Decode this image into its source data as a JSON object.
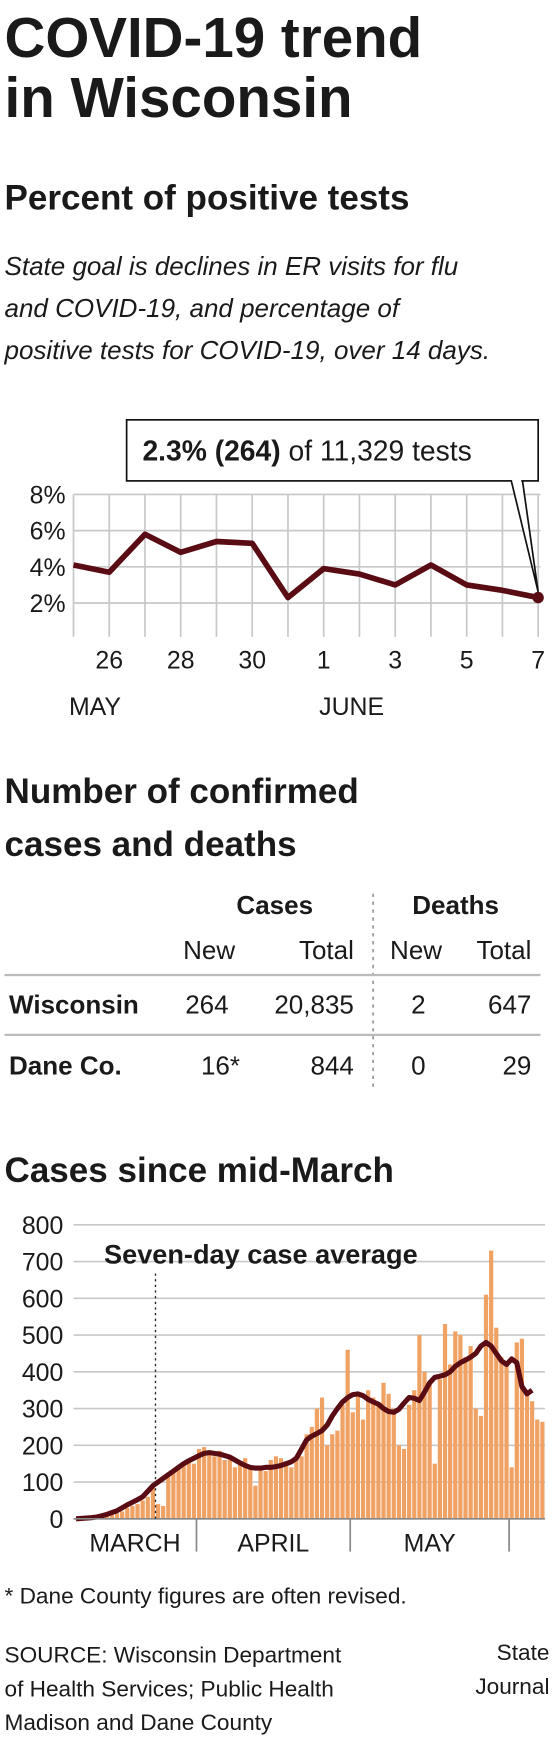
{
  "header": {
    "title_lines": [
      "COVID-19 trend",
      "in Wisconsin"
    ]
  },
  "chart_data": [
    {
      "type": "line",
      "title": "Percent of positive tests",
      "subtitle_lines": [
        "State goal is declines in ER visits for flu",
        "and COVID-19, and percentage of",
        "positive tests for COVID-19, over 14 days."
      ],
      "annotation": {
        "bold": "2.3% (264)",
        "text": "of 11,329 tests"
      },
      "categories": [
        null,
        "26",
        null,
        "28",
        null,
        "30",
        null,
        "1",
        null,
        "3",
        null,
        "5",
        null,
        "7"
      ],
      "month_labels": [
        {
          "label": "MAY",
          "start": 0
        },
        {
          "label": "JUNE",
          "start": 7
        }
      ],
      "values": [
        4.1,
        3.7,
        5.8,
        4.8,
        5.4,
        5.3,
        2.3,
        3.9,
        3.6,
        3.0,
        4.1,
        3.0,
        2.7,
        2.3
      ],
      "color": "#5a0c14",
      "ylim": [
        0,
        8
      ],
      "yticks": [
        {
          "value": 2,
          "label": "2%"
        },
        {
          "value": 4,
          "label": "4%"
        },
        {
          "value": 6,
          "label": "6%"
        },
        {
          "value": 8,
          "label": "8%"
        }
      ],
      "grid": true
    },
    {
      "type": "bar_line",
      "title": "Cases since mid-March",
      "annotation": {
        "text": "Seven-day case average",
        "at": 16
      },
      "month_labels": [
        {
          "label": "MARCH",
          "start": 0
        },
        {
          "label": "APRIL",
          "start": 24
        },
        {
          "label": "MAY",
          "start": 54
        }
      ],
      "dividers": [
        24,
        54,
        85
      ],
      "series": [
        {
          "type": "bar",
          "color": "#f0a265",
          "values": [
            0,
            0,
            1,
            2,
            3,
            5,
            8,
            10,
            15,
            20,
            30,
            35,
            40,
            50,
            60,
            90,
            40,
            35,
            120,
            130,
            140,
            150,
            160,
            150,
            190,
            195,
            180,
            170,
            185,
            160,
            170,
            140,
            150,
            165,
            135,
            90,
            140,
            130,
            160,
            170,
            165,
            150,
            140,
            170,
            170,
            230,
            250,
            300,
            330,
            200,
            230,
            240,
            310,
            460,
            290,
            340,
            270,
            350,
            330,
            310,
            370,
            340,
            300,
            200,
            190,
            310,
            350,
            500,
            400,
            370,
            150,
            380,
            530,
            420,
            510,
            500,
            440,
            470,
            300,
            280,
            610,
            730,
            520,
            440,
            420,
            140,
            480,
            490,
            350,
            320,
            270,
            264
          ]
        },
        {
          "type": "line",
          "color": "#5a0c14",
          "values": [
            0,
            1,
            2,
            3,
            5,
            8,
            12,
            17,
            22,
            30,
            38,
            45,
            52,
            60,
            75,
            90,
            100,
            110,
            120,
            130,
            140,
            150,
            158,
            165,
            172,
            178,
            180,
            178,
            176,
            172,
            168,
            160,
            152,
            145,
            140,
            138,
            138,
            140,
            140,
            142,
            145,
            150,
            155,
            165,
            190,
            215,
            225,
            232,
            240,
            255,
            280,
            300,
            318,
            330,
            338,
            340,
            335,
            325,
            318,
            312,
            300,
            292,
            290,
            298,
            315,
            330,
            328,
            322,
            345,
            370,
            385,
            388,
            392,
            400,
            415,
            425,
            432,
            440,
            450,
            470,
            480,
            470,
            450,
            430,
            420,
            435,
            425,
            360,
            340,
            350,
            null,
            null
          ]
        }
      ],
      "ylim": [
        0,
        800
      ],
      "yticks": [
        0,
        100,
        200,
        300,
        400,
        500,
        600,
        700,
        800
      ],
      "grid": true
    }
  ],
  "table": {
    "title_lines": [
      "Number of confirmed",
      "cases and deaths"
    ],
    "groups": [
      "Cases",
      "Deaths"
    ],
    "columns": [
      "New",
      "Total",
      "New",
      "Total"
    ],
    "rows": [
      [
        "Wisconsin",
        "264",
        "20,835",
        "2",
        "647"
      ],
      [
        "Dane Co.",
        "16*",
        "844",
        "0",
        "29"
      ]
    ]
  },
  "footnote": "* Dane County figures are often revised.",
  "source_lines": [
    "SOURCE: Wisconsin Department",
    "of Health Services; Public Health",
    "Madison and Dane County"
  ],
  "credit_lines": [
    "State",
    "Journal"
  ]
}
